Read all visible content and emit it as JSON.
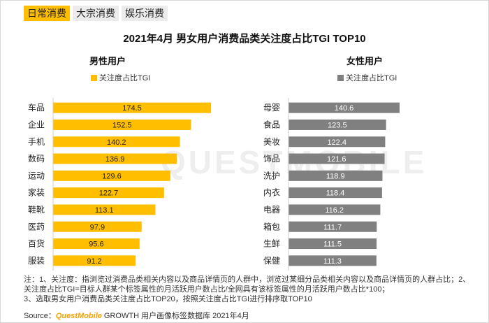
{
  "tabs": [
    {
      "label": "日常消费",
      "active": true
    },
    {
      "label": "大宗消费",
      "active": false
    },
    {
      "label": "娱乐消费",
      "active": false
    }
  ],
  "title": "2021年4月 男女用户消费品类关注度占比TGI TOP10",
  "watermark": "QUESTMOBILE",
  "colors": {
    "male": "#ffbe00",
    "female": "#808080",
    "accent": "#ffbe00"
  },
  "chart_data": [
    {
      "type": "bar",
      "orientation": "horizontal",
      "title": "男性用户",
      "legend": "关注度占比TGI",
      "legend_position": "top-left",
      "categories": [
        "车品",
        "企业",
        "手机",
        "数码",
        "运动",
        "家装",
        "鞋靴",
        "医药",
        "百货",
        "服装"
      ],
      "values": [
        174.5,
        152.5,
        140.2,
        136.9,
        129.6,
        122.7,
        113.1,
        97.9,
        95.6,
        91.2
      ]
    },
    {
      "type": "bar",
      "orientation": "horizontal",
      "title": "女性用户",
      "legend": "关注度占比TGI",
      "legend_position": "top-left",
      "categories": [
        "母婴",
        "食品",
        "美妆",
        "饰品",
        "洗护",
        "内衣",
        "电器",
        "箱包",
        "生鲜",
        "保健"
      ],
      "values": [
        140.6,
        123.5,
        122.4,
        121.6,
        118.9,
        118.4,
        116.2,
        111.7,
        111.5,
        111.3
      ]
    }
  ],
  "notes": {
    "line1": "注：1、关注度：指浏览过消费品类相关内容以及商品详情页的人群中，浏览过某细分品类相关内容以及商品详情页的人群占比；2、关注度占比TGI=目标人群某个标签属性的月活跃用户数占比/全网具有该标签属性的月活跃用户数占比*100；",
    "line2": "3、选取男女用户消费品类关注度占比TOP20，按照关注度占比TGI进行排序取TOP10"
  },
  "source": {
    "prefix": "Source：",
    "brand": "QuestMobile",
    "suffix": " GROWTH 用户画像标签数据库 2021年4月"
  }
}
